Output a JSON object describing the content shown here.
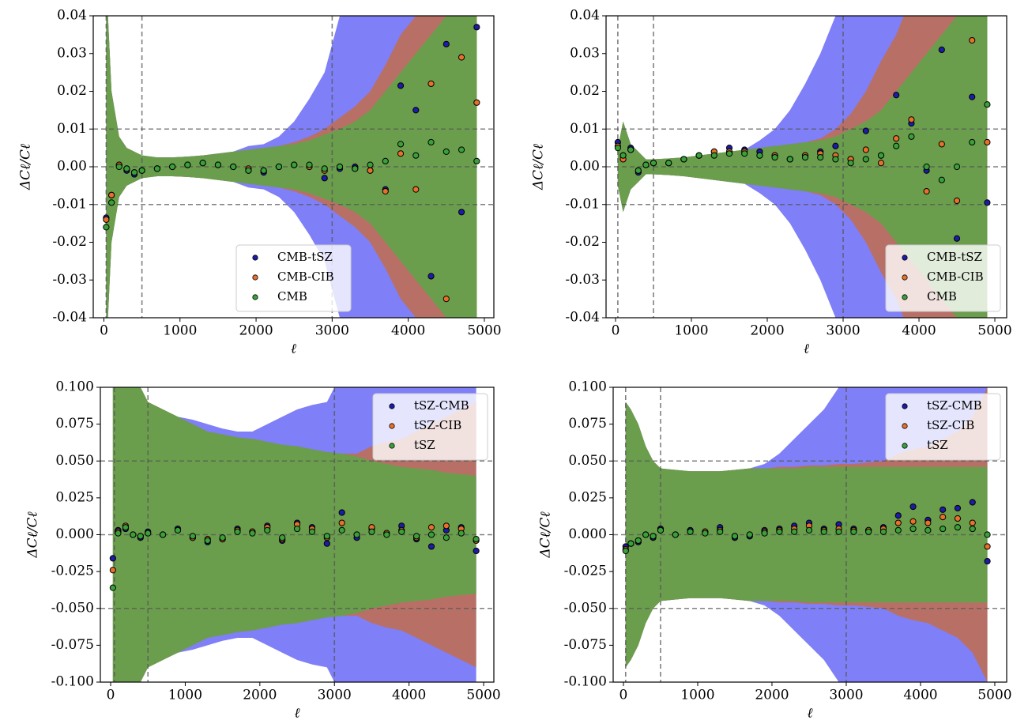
{
  "chart_data": [
    {
      "type": "scatter",
      "xlabel": "ℓ",
      "ylabel": "ΔCℓ/Cℓ",
      "xlim": [
        -140,
        5125
      ],
      "ylim": [
        -0.04,
        0.04
      ],
      "xticks": [
        0,
        1000,
        2000,
        3000,
        4000,
        5000
      ],
      "yticks": [
        -0.04,
        -0.03,
        -0.02,
        -0.01,
        {
          "value": 0,
          "label": "0.00"
        },
        0.01,
        0.02,
        0.03,
        0.04
      ],
      "vlines": [
        30,
        500,
        3000
      ],
      "hlines": [
        -0.01,
        0,
        0.01
      ],
      "legend": "lower center",
      "x": [
        30,
        100,
        200,
        300,
        400,
        500,
        700,
        900,
        1100,
        1300,
        1500,
        1700,
        1900,
        2100,
        2300,
        2500,
        2700,
        2900,
        3100,
        3300,
        3500,
        3700,
        3900,
        4100,
        4300,
        4500,
        4700,
        4900
      ],
      "series": [
        {
          "name": "CMB-tSZ",
          "color": "#1c1ca8",
          "band_color": "#7f7ff7",
          "values": [
            -0.0135,
            -0.0075,
            0.0005,
            -0.001,
            -0.002,
            -0.001,
            -0.0005,
            0,
            0.0005,
            0.001,
            0.0005,
            0,
            -0.001,
            -0.0015,
            0,
            0.0005,
            0,
            -0.003,
            -0.0005,
            0,
            -0.001,
            -0.006,
            0.0215,
            0.015,
            -0.029,
            0.0325,
            -0.012,
            0.037
          ],
          "band": [
            0.05,
            0.02,
            0.008,
            0.005,
            0.004,
            0.003,
            0.0025,
            0.0025,
            0.0027,
            0.003,
            0.0035,
            0.004,
            0.0055,
            0.006,
            0.008,
            0.012,
            0.018,
            0.025,
            0.04,
            0.05,
            0.05,
            0.05,
            0.05,
            0.05,
            0.05,
            0.05,
            0.05,
            0.05
          ]
        },
        {
          "name": "CMB-CIB",
          "color": "#e8702a",
          "band_color": "#b87066",
          "values": [
            -0.014,
            -0.0075,
            0.0005,
            -0.0005,
            -0.0015,
            -0.001,
            -0.0005,
            0,
            0.0005,
            0.001,
            0.0005,
            0,
            -0.0005,
            -0.001,
            0,
            0.0005,
            0,
            -0.001,
            0,
            -0.0005,
            -0.001,
            -0.0065,
            0.0035,
            -0.006,
            0.022,
            -0.035,
            0.029,
            0.017
          ],
          "band": [
            0.05,
            0.02,
            0.008,
            0.005,
            0.004,
            0.003,
            0.0025,
            0.0025,
            0.0027,
            0.003,
            0.0035,
            0.004,
            0.0045,
            0.005,
            0.0055,
            0.0065,
            0.008,
            0.01,
            0.013,
            0.016,
            0.02,
            0.027,
            0.035,
            0.04,
            0.045,
            0.05,
            0.05,
            0.05
          ]
        },
        {
          "name": "CMB",
          "color": "#3aa03a",
          "band_color": "#6a9e4c",
          "values": [
            -0.016,
            -0.0095,
            0,
            -0.0005,
            -0.0015,
            -0.001,
            -0.0005,
            0,
            0.0005,
            0.001,
            0.0005,
            0,
            -0.001,
            -0.001,
            0,
            0.0005,
            0.0005,
            -0.0005,
            0,
            -0.0005,
            0.0005,
            0.0015,
            0.006,
            0.003,
            0.0065,
            0.004,
            0.0045,
            0.0015
          ],
          "band": [
            0.05,
            0.02,
            0.008,
            0.005,
            0.004,
            0.003,
            0.0025,
            0.0025,
            0.0027,
            0.003,
            0.0035,
            0.004,
            0.0045,
            0.005,
            0.0055,
            0.006,
            0.007,
            0.0085,
            0.01,
            0.012,
            0.015,
            0.02,
            0.025,
            0.03,
            0.035,
            0.04,
            0.045,
            0.05
          ]
        }
      ]
    },
    {
      "type": "scatter",
      "xlabel": "ℓ",
      "ylabel": "ΔCℓ/Cℓ",
      "xlim": [
        -125,
        5156
      ],
      "ylim": [
        -0.04,
        0.04
      ],
      "xticks": [
        0,
        1000,
        2000,
        3000,
        4000,
        5000
      ],
      "yticks": [
        -0.04,
        -0.03,
        -0.02,
        -0.01,
        {
          "value": 0,
          "label": "0.00"
        },
        0.01,
        0.02,
        0.03,
        0.04
      ],
      "vlines": [
        30,
        500,
        3000
      ],
      "hlines": [
        -0.01,
        0,
        0.01
      ],
      "legend": "lower right",
      "x": [
        30,
        100,
        200,
        300,
        400,
        500,
        700,
        900,
        1100,
        1300,
        1500,
        1700,
        1900,
        2100,
        2300,
        2500,
        2700,
        2900,
        3100,
        3300,
        3500,
        3700,
        3900,
        4100,
        4300,
        4500,
        4700,
        4900
      ],
      "series": [
        {
          "name": "CMB-tSZ",
          "color": "#1c1ca8",
          "band_color": "#7f7ff7",
          "values": [
            0.0065,
            0.003,
            0.005,
            -0.0015,
            0.0005,
            0.001,
            0.001,
            0.002,
            0.003,
            0.004,
            0.005,
            0.0045,
            0.004,
            0.003,
            0.002,
            0.003,
            0.004,
            0.0055,
            0.002,
            0.0095,
            0.003,
            0.019,
            0.0115,
            -0.001,
            0.031,
            -0.019,
            0.0185,
            -0.0095
          ],
          "band": [
            0.005,
            0.012,
            0.006,
            0.004,
            0.002,
            0.002,
            0.0022,
            0.0025,
            0.003,
            0.0035,
            0.004,
            0.0045,
            0.007,
            0.01,
            0.015,
            0.022,
            0.03,
            0.04,
            0.05,
            0.05,
            0.05,
            0.05,
            0.05,
            0.05,
            0.05,
            0.05,
            0.05,
            0.05
          ]
        },
        {
          "name": "CMB-CIB",
          "color": "#e8702a",
          "band_color": "#b87066",
          "values": [
            0.0055,
            0.002,
            0.0045,
            -0.001,
            0.0005,
            0.001,
            0.001,
            0.002,
            0.003,
            0.004,
            0.004,
            0.004,
            0.003,
            0.003,
            0.002,
            0.003,
            0.0035,
            0.003,
            0.002,
            0.0045,
            0.001,
            0.0075,
            0.0125,
            -0.0065,
            0.006,
            -0.009,
            0.0335,
            0.0065
          ],
          "band": [
            0.005,
            0.012,
            0.006,
            0.004,
            0.002,
            0.002,
            0.0022,
            0.0025,
            0.003,
            0.0035,
            0.004,
            0.0045,
            0.005,
            0.0055,
            0.006,
            0.0065,
            0.0075,
            0.01,
            0.014,
            0.02,
            0.028,
            0.035,
            0.045,
            0.05,
            0.05,
            0.05,
            0.05,
            0.05
          ]
        },
        {
          "name": "CMB",
          "color": "#3aa03a",
          "band_color": "#6a9e4c",
          "values": [
            0.005,
            0.003,
            0.0045,
            -0.001,
            0.0005,
            0.001,
            0.001,
            0.002,
            0.003,
            0.003,
            0.0035,
            0.0035,
            0.003,
            0.0025,
            0.002,
            0.0025,
            0.0025,
            0.002,
            0.001,
            0.002,
            0.003,
            0.0055,
            0.008,
            0,
            -0.0035,
            0,
            0.0065,
            0.0165
          ],
          "band": [
            0.005,
            0.012,
            0.006,
            0.004,
            0.002,
            0.002,
            0.0022,
            0.0025,
            0.003,
            0.0035,
            0.004,
            0.0045,
            0.005,
            0.0055,
            0.006,
            0.0065,
            0.007,
            0.008,
            0.01,
            0.012,
            0.015,
            0.02,
            0.025,
            0.03,
            0.035,
            0.04,
            0.045,
            0.05
          ]
        }
      ]
    },
    {
      "type": "scatter",
      "xlabel": "ℓ",
      "ylabel": "ΔCℓ/Cℓ",
      "xlim": [
        -138,
        5137
      ],
      "ylim": [
        -0.1,
        0.1
      ],
      "xticks": [
        0,
        1000,
        2000,
        3000,
        4000,
        5000
      ],
      "yticks": [
        {
          "value": -0.1,
          "label": "-0.100"
        },
        -0.075,
        {
          "value": -0.05,
          "label": "-0.050"
        },
        -0.025,
        {
          "value": 0,
          "label": "0.000"
        },
        0.025,
        {
          "value": 0.05,
          "label": "0.050"
        },
        0.075,
        {
          "value": 0.1,
          "label": "0.100"
        }
      ],
      "vlines": [
        50,
        500,
        3000
      ],
      "hlines": [
        -0.05,
        0,
        0.05
      ],
      "legend": "upper right",
      "x": [
        30,
        100,
        200,
        300,
        400,
        500,
        700,
        900,
        1100,
        1300,
        1500,
        1700,
        1900,
        2100,
        2300,
        2500,
        2700,
        2900,
        3100,
        3300,
        3500,
        3700,
        3900,
        4100,
        4300,
        4500,
        4700,
        4900
      ],
      "series": [
        {
          "name": "tSZ-CMB",
          "color": "#1c1ca8",
          "band_color": "#7f7ff7",
          "values": [
            -0.016,
            0.003,
            0.004,
            0,
            -0.002,
            0.002,
            0,
            0.004,
            -0.002,
            -0.005,
            -0.003,
            0.004,
            0.002,
            0.006,
            -0.004,
            0.008,
            0.005,
            -0.006,
            0.015,
            -0.002,
            0.004,
            0.001,
            0.006,
            -0.003,
            -0.008,
            0.003,
            0.005,
            -0.011
          ],
          "band": [
            0.15,
            0.15,
            0.12,
            0.11,
            0.1,
            0.09,
            0.085,
            0.08,
            0.078,
            0.075,
            0.072,
            0.07,
            0.07,
            0.075,
            0.08,
            0.085,
            0.088,
            0.09,
            0.11,
            0.115,
            0.12,
            0.125,
            0.13,
            0.13,
            0.13,
            0.13,
            0.13,
            0.13
          ]
        },
        {
          "name": "tSZ-CIB",
          "color": "#e8702a",
          "band_color": "#b87066",
          "values": [
            -0.024,
            0.002,
            0.006,
            0,
            -0.001,
            0.001,
            0,
            0.003,
            -0.002,
            -0.003,
            -0.003,
            0.003,
            0.002,
            0.005,
            -0.003,
            0.007,
            0.004,
            -0.002,
            0.008,
            0,
            0.005,
            0.001,
            0.003,
            -0.002,
            0.005,
            0.006,
            0.004,
            -0.004
          ],
          "band": [
            0.15,
            0.15,
            0.12,
            0.11,
            0.1,
            0.09,
            0.085,
            0.08,
            0.075,
            0.07,
            0.068,
            0.066,
            0.065,
            0.063,
            0.061,
            0.06,
            0.058,
            0.056,
            0.055,
            0.055,
            0.06,
            0.063,
            0.065,
            0.07,
            0.075,
            0.08,
            0.085,
            0.09
          ]
        },
        {
          "name": "tSZ",
          "color": "#3aa03a",
          "band_color": "#6a9e4c",
          "values": [
            -0.036,
            0.001,
            0.005,
            0,
            -0.001,
            0.001,
            0,
            0.003,
            -0.001,
            -0.004,
            -0.002,
            0.002,
            0.001,
            0.003,
            -0.002,
            0.004,
            0.002,
            -0.001,
            0.003,
            0,
            0.002,
            0,
            0.002,
            -0.001,
            0,
            -0.002,
            0.001,
            -0.003
          ],
          "band": [
            0.15,
            0.15,
            0.12,
            0.11,
            0.1,
            0.09,
            0.085,
            0.08,
            0.075,
            0.07,
            0.068,
            0.066,
            0.065,
            0.063,
            0.061,
            0.06,
            0.058,
            0.056,
            0.055,
            0.053,
            0.05,
            0.048,
            0.046,
            0.045,
            0.044,
            0.042,
            0.041,
            0.04
          ]
        }
      ]
    },
    {
      "type": "scatter",
      "xlabel": "ℓ",
      "ylabel": "ΔCℓ/Cℓ",
      "xlim": [
        -138,
        5160
      ],
      "ylim": [
        -0.1,
        0.1
      ],
      "xticks": [
        0,
        1000,
        2000,
        3000,
        4000,
        5000
      ],
      "yticks": [
        {
          "value": -0.1,
          "label": "-0.100"
        },
        -0.075,
        {
          "value": -0.05,
          "label": "-0.050"
        },
        -0.025,
        {
          "value": 0,
          "label": "0.000"
        },
        0.025,
        {
          "value": 0.05,
          "label": "0.050"
        },
        0.075,
        {
          "value": 0.1,
          "label": "0.100"
        }
      ],
      "vlines": [
        30,
        500,
        3000
      ],
      "hlines": [
        -0.05,
        0,
        0.05
      ],
      "legend": "upper right",
      "x": [
        30,
        100,
        200,
        300,
        400,
        500,
        700,
        900,
        1100,
        1300,
        1500,
        1700,
        1900,
        2100,
        2300,
        2500,
        2700,
        2900,
        3100,
        3300,
        3500,
        3700,
        3900,
        4100,
        4300,
        4500,
        4700,
        4900
      ],
      "series": [
        {
          "name": "tSZ-CMB",
          "color": "#1c1ca8",
          "band_color": "#7f7ff7",
          "values": [
            -0.008,
            -0.006,
            -0.005,
            0,
            -0.002,
            0.004,
            0,
            0.003,
            0.002,
            0.005,
            -0.002,
            -0.001,
            0.003,
            0.004,
            0.006,
            0.008,
            0.004,
            0.007,
            0.004,
            0.003,
            0.005,
            0.013,
            0.019,
            0.01,
            0.017,
            0.018,
            0.022,
            -0.018
          ],
          "band": [
            0.09,
            0.085,
            0.075,
            0.06,
            0.05,
            0.045,
            0.044,
            0.043,
            0.043,
            0.043,
            0.044,
            0.045,
            0.048,
            0.055,
            0.065,
            0.075,
            0.085,
            0.1,
            0.1,
            0.105,
            0.11,
            0.115,
            0.12,
            0.12,
            0.12,
            0.12,
            0.12,
            0.12
          ]
        },
        {
          "name": "tSZ-CIB",
          "color": "#e8702a",
          "band_color": "#b87066",
          "values": [
            -0.01,
            -0.006,
            -0.004,
            0,
            -0.001,
            0.003,
            0,
            0.002,
            0.002,
            0.003,
            -0.001,
            0,
            0.002,
            0.003,
            0.004,
            0.006,
            0.003,
            0.004,
            0.003,
            0.003,
            0.004,
            0.008,
            0.009,
            0.008,
            0.012,
            0.011,
            0.008,
            -0.008
          ],
          "band": [
            0.09,
            0.085,
            0.075,
            0.06,
            0.05,
            0.045,
            0.044,
            0.043,
            0.043,
            0.043,
            0.044,
            0.045,
            0.045,
            0.046,
            0.046,
            0.047,
            0.047,
            0.048,
            0.048,
            0.049,
            0.05,
            0.055,
            0.058,
            0.06,
            0.065,
            0.07,
            0.08,
            0.1
          ]
        },
        {
          "name": "tSZ",
          "color": "#3aa03a",
          "band_color": "#6a9e4c",
          "values": [
            -0.011,
            -0.006,
            -0.004,
            0,
            -0.001,
            0.003,
            0,
            0.002,
            0.001,
            0.002,
            -0.001,
            0,
            0.001,
            0.002,
            0.002,
            0.003,
            0.002,
            0.002,
            0.002,
            0.002,
            0.002,
            0.003,
            0.004,
            0.003,
            0.004,
            0.005,
            0.004,
            0
          ],
          "band": [
            0.09,
            0.085,
            0.075,
            0.06,
            0.05,
            0.045,
            0.044,
            0.043,
            0.043,
            0.043,
            0.044,
            0.045,
            0.045,
            0.045,
            0.045,
            0.046,
            0.046,
            0.046,
            0.046,
            0.046,
            0.046,
            0.046,
            0.046,
            0.046,
            0.046,
            0.046,
            0.046,
            0.046
          ]
        }
      ]
    }
  ]
}
